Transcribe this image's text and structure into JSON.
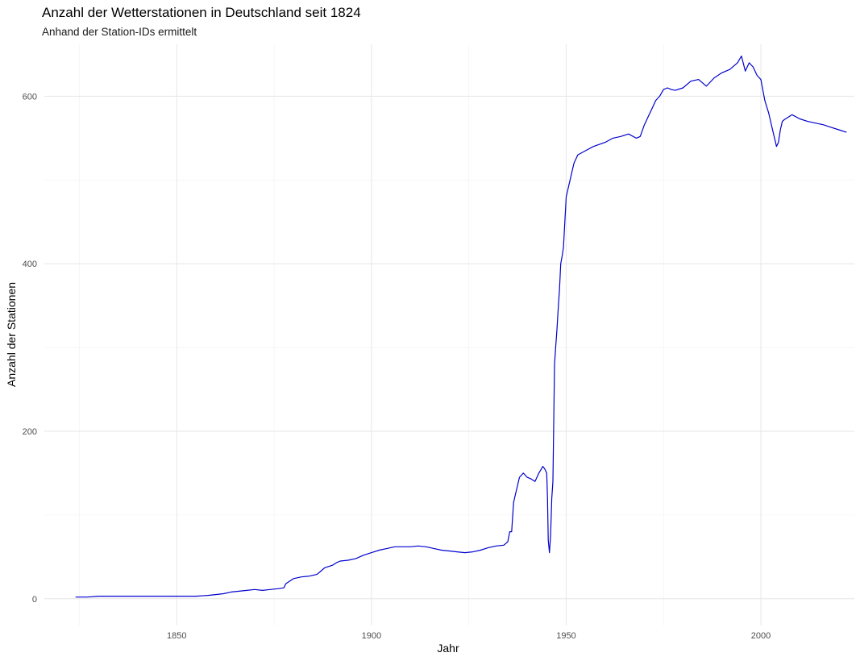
{
  "chart_data": {
    "type": "line",
    "title": "Anzahl der Wetterstationen in Deutschland seit 1824",
    "subtitle": "Anhand der Station-IDs ermittelt",
    "xlabel": "Jahr",
    "ylabel": "Anzahl der Stationen",
    "xlim": [
      1816,
      2024
    ],
    "ylim": [
      -32,
      662
    ],
    "x_ticks": [
      1850,
      1900,
      1950,
      2000
    ],
    "y_ticks": [
      0,
      200,
      400,
      600
    ],
    "grid": true,
    "line_color": "#0000cd",
    "series": [
      {
        "x": [
          1824,
          1827,
          1830,
          1835,
          1840,
          1845,
          1850,
          1855,
          1858,
          1860,
          1862,
          1864,
          1866,
          1868,
          1870,
          1872,
          1874,
          1876,
          1877.5,
          1878,
          1880,
          1882,
          1884,
          1886,
          1887,
          1888,
          1890,
          1891,
          1892,
          1894,
          1896,
          1898,
          1900,
          1902,
          1904,
          1906,
          1908,
          1910,
          1912,
          1914,
          1916,
          1918,
          1920,
          1922,
          1924,
          1926,
          1928,
          1930,
          1932,
          1934,
          1935,
          1935.5,
          1936,
          1936.5,
          1937,
          1938,
          1939,
          1940,
          1941,
          1942,
          1943,
          1944,
          1944.5,
          1945,
          1945.2,
          1945.4,
          1945.7,
          1946,
          1946.3,
          1946.6,
          1947,
          1947.3,
          1947.6,
          1948,
          1948.3,
          1948.6,
          1949,
          1949.3,
          1950,
          1951,
          1952,
          1953,
          1955,
          1957,
          1960,
          1962,
          1964,
          1966,
          1968,
          1969,
          1970,
          1971,
          1972,
          1973,
          1974,
          1975,
          1976,
          1977,
          1978,
          1980,
          1982,
          1984,
          1986,
          1988,
          1990,
          1992,
          1994,
          1995,
          1996,
          1997,
          1998,
          1999,
          2000,
          2001,
          2002,
          2003,
          2004,
          2004.5,
          2005,
          2005.5,
          2006,
          2007,
          2008,
          2010,
          2012,
          2014,
          2016,
          2018,
          2020,
          2022
        ],
        "y": [
          2,
          2,
          3,
          3,
          3,
          3,
          3,
          3,
          4,
          5,
          6,
          8,
          9,
          10,
          11,
          10,
          11,
          12,
          13,
          18,
          24,
          26,
          27,
          29,
          33,
          37,
          40,
          43,
          45,
          46,
          48,
          52,
          55,
          58,
          60,
          62,
          62,
          62,
          63,
          62,
          60,
          58,
          57,
          56,
          55,
          56,
          58,
          61,
          63,
          64,
          68,
          80,
          80,
          115,
          125,
          145,
          150,
          145,
          143,
          140,
          150,
          158,
          155,
          150,
          120,
          70,
          55,
          75,
          120,
          140,
          280,
          300,
          320,
          350,
          370,
          400,
          410,
          420,
          480,
          500,
          520,
          530,
          535,
          540,
          545,
          550,
          552,
          555,
          550,
          552,
          565,
          575,
          585,
          595,
          600,
          608,
          610,
          608,
          607,
          610,
          618,
          620,
          612,
          622,
          628,
          632,
          640,
          648,
          630,
          640,
          635,
          625,
          620,
          595,
          580,
          560,
          540,
          545,
          560,
          570,
          572,
          575,
          578,
          573,
          570,
          568,
          566,
          563,
          560,
          557
        ]
      }
    ]
  }
}
